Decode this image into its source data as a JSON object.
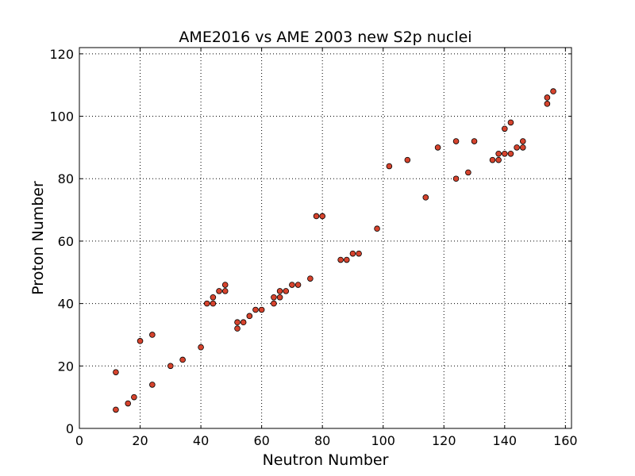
{
  "chart_data": {
    "type": "scatter",
    "title": "AME2016 vs AME 2003 new S2p nuclei",
    "xlabel": "Neutron Number",
    "ylabel": "Proton Number",
    "xlim": [
      0,
      162
    ],
    "ylim": [
      0,
      122
    ],
    "xticks": [
      0,
      20,
      40,
      60,
      80,
      100,
      120,
      140,
      160
    ],
    "yticks": [
      0,
      20,
      40,
      60,
      80,
      100,
      120
    ],
    "grid": true,
    "marker_color": "#d6432d",
    "marker_edge_color": "#000000",
    "x": [
      12,
      12,
      16,
      18,
      20,
      24,
      24,
      30,
      34,
      40,
      42,
      44,
      44,
      46,
      48,
      48,
      52,
      52,
      54,
      56,
      58,
      60,
      64,
      64,
      66,
      66,
      68,
      70,
      72,
      76,
      78,
      80,
      86,
      88,
      90,
      92,
      98,
      102,
      108,
      114,
      118,
      124,
      124,
      128,
      130,
      136,
      138,
      138,
      140,
      140,
      142,
      142,
      144,
      146,
      146,
      154,
      154,
      156
    ],
    "y": [
      6,
      18,
      8,
      10,
      28,
      14,
      30,
      20,
      22,
      26,
      40,
      40,
      42,
      44,
      44,
      46,
      32,
      34,
      34,
      36,
      38,
      38,
      40,
      42,
      42,
      44,
      44,
      46,
      46,
      48,
      68,
      68,
      54,
      54,
      56,
      56,
      64,
      84,
      86,
      74,
      90,
      80,
      92,
      82,
      92,
      86,
      86,
      88,
      88,
      96,
      88,
      98,
      90,
      90,
      92,
      104,
      106,
      108
    ]
  }
}
